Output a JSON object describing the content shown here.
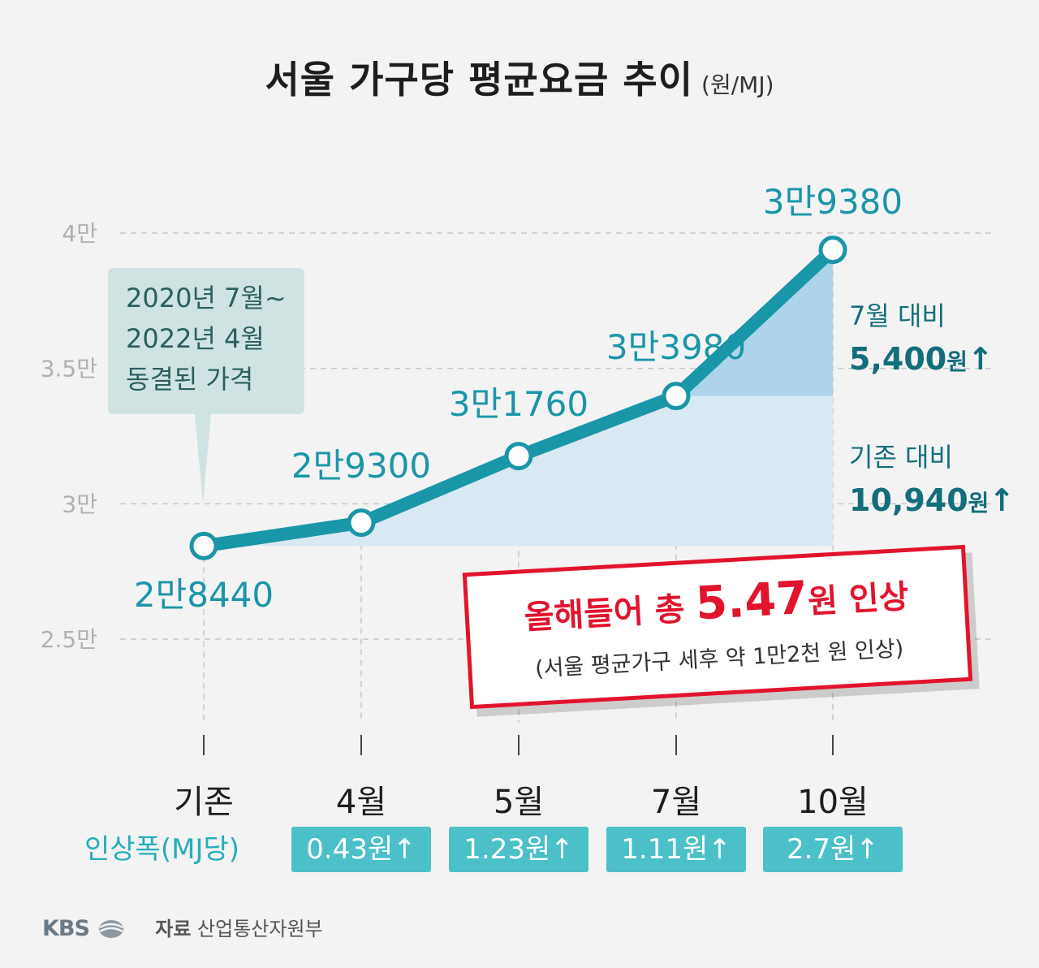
{
  "chart_data": {
    "type": "line",
    "title": "서울 가구당 평균요금 추이",
    "unit": "(원/MJ)",
    "categories": [
      "기존",
      "4월",
      "5월",
      "7월",
      "10월"
    ],
    "values": [
      28440,
      29300,
      31760,
      33980,
      39380
    ],
    "data_labels": [
      "2만8440",
      "2만9300",
      "3만1760",
      "3만3980",
      "3만9380"
    ],
    "y_ticks": [
      {
        "value": 25000,
        "label": "2.5만"
      },
      {
        "value": 30000,
        "label": "3만"
      },
      {
        "value": 35000,
        "label": "3.5만"
      },
      {
        "value": 40000,
        "label": "4만"
      }
    ],
    "ylim": [
      25000,
      40000
    ],
    "grid": true,
    "line_color": "#1996a8"
  },
  "callout": {
    "lines": [
      "2020년 7월~",
      "2022년 4월",
      "동결된 가격"
    ]
  },
  "annotations": {
    "vs_july_label": "7월 대비",
    "vs_july_value": "5,400",
    "vs_base_label": "기존 대비",
    "vs_base_value": "10,940",
    "won": "원",
    "arrow": "↑"
  },
  "highlight": {
    "prefix": "올해들어 총 ",
    "value": "5.47",
    "won": "원",
    "suffix": " 인상",
    "sub": "(서울 평균가구 세후 약 1만2천 원 인상)"
  },
  "increase": {
    "title": "인상폭(MJ당)",
    "badges": [
      "0.43원↑",
      "1.23원↑",
      "1.11원↑",
      "2.7원↑"
    ]
  },
  "footer": {
    "brand": "KBS",
    "source_label": "자료",
    "source": "산업통산자원부"
  },
  "colors": {
    "accent_red": "#e2142d",
    "teal": "#1996a8",
    "dark_teal": "#136e7b",
    "badge": "#4cc0c8",
    "area_light": "#d9e9f3",
    "area_dark": "#aed4ec"
  }
}
